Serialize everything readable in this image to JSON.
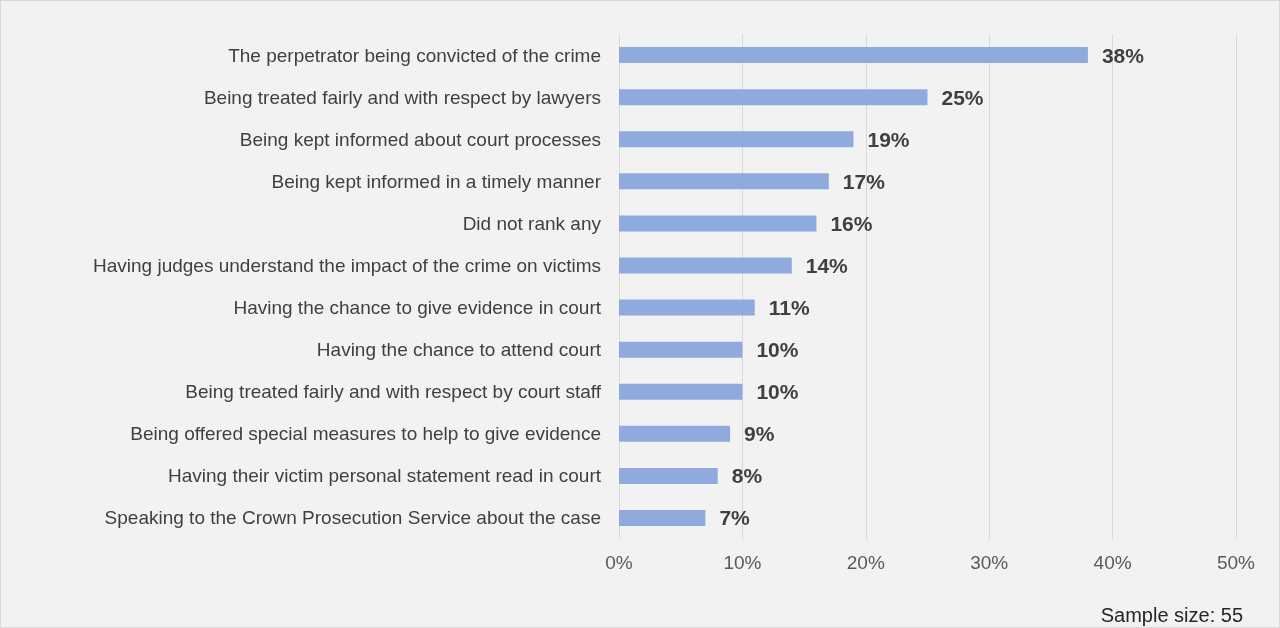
{
  "chart_data": {
    "type": "bar",
    "orientation": "horizontal",
    "categories": [
      "The perpetrator being convicted of the crime",
      "Being treated fairly and with respect by lawyers",
      "Being kept informed about court processes",
      "Being kept informed in a timely manner",
      "Did not rank any",
      "Having judges understand the impact of the crime on victims",
      "Having the chance to give evidence in court",
      "Having the chance to attend court",
      "Being treated fairly and with respect by court staff",
      "Being offered special measures to help to give evidence",
      "Having their victim personal statement read in court",
      "Speaking to the Crown Prosecution Service about the case"
    ],
    "values": [
      38,
      25,
      19,
      17,
      16,
      14,
      11,
      10,
      10,
      9,
      8,
      7
    ],
    "value_labels": [
      "38%",
      "25%",
      "19%",
      "17%",
      "16%",
      "14%",
      "11%",
      "10%",
      "10%",
      "9%",
      "8%",
      "7%"
    ],
    "color": "#8faadc",
    "xlim": [
      0,
      50
    ],
    "xticks": [
      {
        "value": 0,
        "label": "0%"
      },
      {
        "value": 10,
        "label": "10%"
      },
      {
        "value": 20,
        "label": "20%"
      },
      {
        "value": 30,
        "label": "30%"
      },
      {
        "value": 40,
        "label": "40%"
      },
      {
        "value": 50,
        "label": "50%"
      }
    ],
    "grid": "x",
    "annotations": [
      "Sample size: 55"
    ]
  }
}
